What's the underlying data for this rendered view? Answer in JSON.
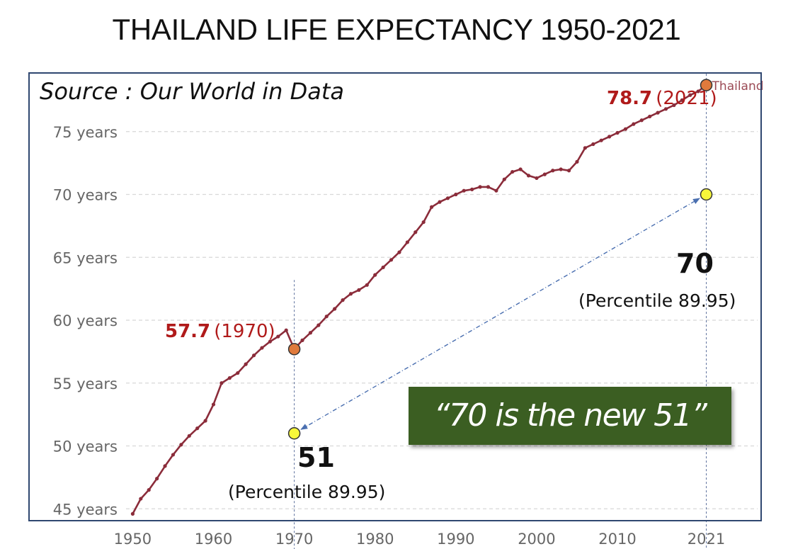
{
  "title": "THAILAND LIFE EXPECTANCY 1950-2021",
  "source_note": "Source : Our World in Data",
  "quote": "“70 is the new 51”",
  "colors": {
    "line": "#8b2c3a",
    "highlight_point": "#e07a3c",
    "compare_point": "#f7f73a",
    "annotation_red": "#b01a1a",
    "quote_bg": "#3b5e22",
    "frame": "#2f4770",
    "arrow": "#4a6fb0"
  },
  "annotations": {
    "y2021_value": "78.7",
    "y2021_year": "(2021)",
    "y1970_value": "57.7",
    "y1970_year": "(1970)",
    "new_value": "70",
    "new_percentile": "(Percentile 89.95)",
    "old_value": "51",
    "old_percentile": "(Percentile 89.95)"
  },
  "chart_data": {
    "type": "line",
    "title": "THAILAND LIFE EXPECTANCY 1950-2021",
    "xlabel": "",
    "ylabel": "",
    "xlim": [
      1949,
      2027
    ],
    "ylim": [
      44,
      80
    ],
    "x_ticks": [
      1950,
      1960,
      1970,
      1980,
      1990,
      2000,
      2010,
      2021
    ],
    "x_tick_labels": [
      "1950",
      "1960",
      "1970",
      "1980",
      "1990",
      "2000",
      "2010",
      "2021"
    ],
    "y_ticks": [
      45,
      50,
      55,
      60,
      65,
      70,
      75
    ],
    "y_tick_labels": [
      "45 years",
      "50 years",
      "55 years",
      "60 years",
      "65 years",
      "70 years",
      "75 years"
    ],
    "grid": "horizontal dashed",
    "series": [
      {
        "name": "Thailand",
        "x": [
          1950,
          1951,
          1952,
          1953,
          1954,
          1955,
          1956,
          1957,
          1958,
          1959,
          1960,
          1961,
          1962,
          1963,
          1964,
          1965,
          1966,
          1967,
          1968,
          1969,
          1970,
          1971,
          1972,
          1973,
          1974,
          1975,
          1976,
          1977,
          1978,
          1979,
          1980,
          1981,
          1982,
          1983,
          1984,
          1985,
          1986,
          1987,
          1988,
          1989,
          1990,
          1991,
          1992,
          1993,
          1994,
          1995,
          1996,
          1997,
          1998,
          1999,
          2000,
          2001,
          2002,
          2003,
          2004,
          2005,
          2006,
          2007,
          2008,
          2009,
          2010,
          2011,
          2012,
          2013,
          2014,
          2015,
          2016,
          2017,
          2018,
          2019,
          2020,
          2021
        ],
        "values": [
          44.6,
          45.8,
          46.5,
          47.4,
          48.4,
          49.3,
          50.1,
          50.8,
          51.4,
          52.0,
          53.3,
          55.0,
          55.4,
          55.8,
          56.5,
          57.2,
          57.8,
          58.3,
          58.7,
          59.2,
          57.7,
          58.4,
          59.0,
          59.6,
          60.3,
          60.9,
          61.6,
          62.1,
          62.4,
          62.8,
          63.6,
          64.2,
          64.8,
          65.4,
          66.2,
          67.0,
          67.8,
          69.0,
          69.4,
          69.7,
          70.0,
          70.3,
          70.4,
          70.6,
          70.6,
          70.3,
          71.2,
          71.8,
          72.0,
          71.5,
          71.3,
          71.6,
          71.9,
          72.0,
          71.9,
          72.6,
          73.7,
          74.0,
          74.3,
          74.6,
          74.9,
          75.2,
          75.6,
          75.9,
          76.2,
          76.5,
          76.8,
          77.1,
          77.5,
          77.9,
          78.2,
          78.7
        ]
      }
    ],
    "highlights": [
      {
        "x": 1970,
        "y": 57.7,
        "label": "57.7 (1970)"
      },
      {
        "x": 2021,
        "y": 78.7,
        "label": "78.7 (2021)"
      }
    ],
    "comparison_points": [
      {
        "x": 1970,
        "y": 51,
        "label": "51"
      },
      {
        "x": 2021,
        "y": 70,
        "label": "70"
      }
    ],
    "series_end_label": "Thailand"
  }
}
